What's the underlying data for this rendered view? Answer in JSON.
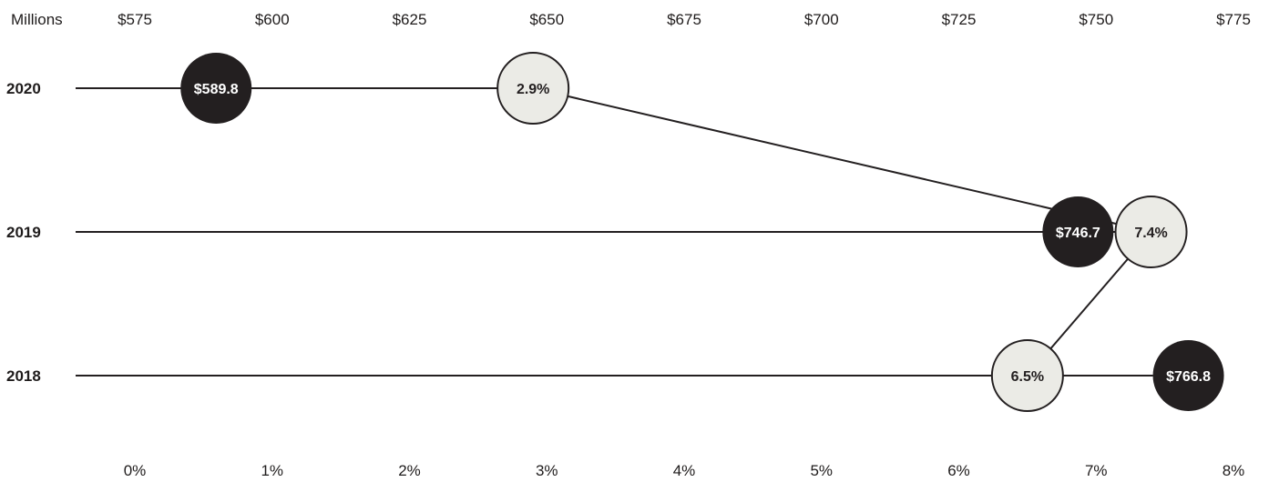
{
  "chart_data": {
    "type": "scatter",
    "top_axis": {
      "unit_label": "Millions",
      "ticks": [
        "$575",
        "$600",
        "$625",
        "$650",
        "$675",
        "$700",
        "$725",
        "$750",
        "$775"
      ],
      "range": [
        575,
        775
      ]
    },
    "bottom_axis": {
      "ticks": [
        "0%",
        "1%",
        "2%",
        "3%",
        "4%",
        "5%",
        "6%",
        "7%",
        "8%"
      ],
      "range": [
        0,
        8
      ]
    },
    "categories": [
      "2020",
      "2019",
      "2018"
    ],
    "series": [
      {
        "axis": "top",
        "color": "#231f20",
        "values": [
          589.8,
          746.7,
          766.8
        ],
        "labels": [
          "$589.8",
          "$746.7",
          "$766.8"
        ]
      },
      {
        "axis": "bottom",
        "color": "#ebebe6",
        "values": [
          2.9,
          7.4,
          6.5
        ],
        "labels": [
          "2.9%",
          "7.4%",
          "6.5%"
        ]
      }
    ],
    "grid": false,
    "legend": "none"
  }
}
